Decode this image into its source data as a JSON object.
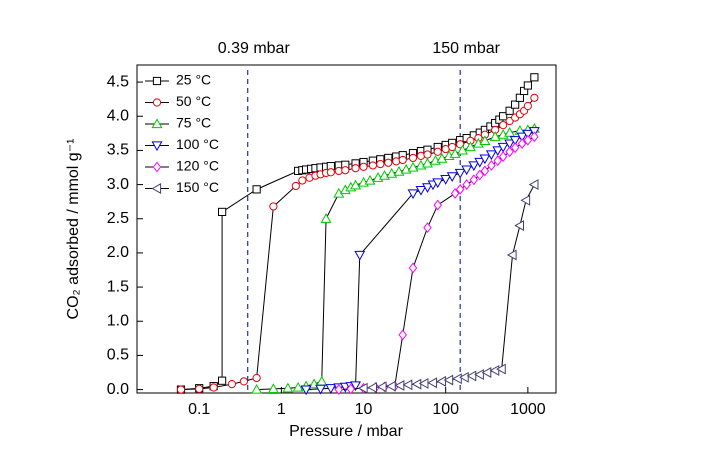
{
  "chart_data": {
    "type": "line",
    "xlabel": "Pressure / mbar",
    "ylabel": "CO₂ adsorbed / mmol g⁻¹",
    "xscale": "log",
    "xlim": [
      0.0175,
      2200
    ],
    "xticks": [
      0.1,
      1,
      10,
      100,
      1000
    ],
    "ylim": [
      -0.05,
      4.75
    ],
    "yticks": [
      {
        "value": 0,
        "label": "0.0"
      },
      0.5,
      {
        "value": 1,
        "label": "1.0"
      },
      1.5,
      {
        "value": 2,
        "label": "2.0"
      },
      2.5,
      {
        "value": 3,
        "label": "3.0"
      },
      3.5,
      {
        "value": 4,
        "label": "4.0"
      },
      4.5
    ],
    "legend": "upper left",
    "annotations": [
      {
        "x": 0.39,
        "label": "0.39 mbar"
      },
      {
        "x": 150,
        "label": "150 mbar"
      }
    ],
    "series": [
      {
        "name": "25 °C",
        "color": "#000000",
        "marker": "square",
        "x": [
          0.06,
          0.1,
          0.15,
          0.19,
          0.19,
          0.5,
          1.6,
          1.8,
          2,
          2.3,
          2.6,
          3,
          3.5,
          4,
          5,
          6,
          8,
          10,
          13,
          16,
          20,
          25,
          30,
          40,
          50,
          60,
          80,
          100,
          120,
          150,
          180,
          220,
          260,
          300,
          350,
          400,
          450,
          500,
          600,
          700,
          800,
          900,
          1000,
          1200
        ],
        "values": [
          0,
          0.02,
          0.05,
          0.13,
          2.6,
          2.93,
          3.2,
          3.21,
          3.22,
          3.23,
          3.24,
          3.25,
          3.26,
          3.27,
          3.28,
          3.29,
          3.31,
          3.33,
          3.35,
          3.37,
          3.39,
          3.41,
          3.43,
          3.46,
          3.49,
          3.51,
          3.55,
          3.58,
          3.61,
          3.65,
          3.68,
          3.72,
          3.76,
          3.8,
          3.85,
          3.9,
          3.95,
          4.0,
          4.08,
          4.17,
          4.27,
          4.37,
          4.45,
          4.57
        ]
      },
      {
        "name": "50 °C",
        "color": "#e8000b",
        "marker": "circle",
        "x": [
          0.06,
          0.1,
          0.15,
          0.25,
          0.35,
          0.5,
          0.8,
          1.5,
          1.8,
          2.2,
          2.6,
          3,
          3.5,
          4,
          5,
          6,
          8,
          10,
          13,
          16,
          20,
          25,
          30,
          40,
          50,
          60,
          80,
          100,
          120,
          150,
          200,
          250,
          300,
          400,
          500,
          600,
          700,
          800,
          900,
          1000,
          1200
        ],
        "values": [
          0,
          0.01,
          0.03,
          0.08,
          0.12,
          0.17,
          2.68,
          2.98,
          3.06,
          3.1,
          3.13,
          3.15,
          3.17,
          3.18,
          3.2,
          3.21,
          3.24,
          3.26,
          3.28,
          3.3,
          3.32,
          3.34,
          3.36,
          3.39,
          3.42,
          3.44,
          3.48,
          3.52,
          3.55,
          3.59,
          3.64,
          3.68,
          3.73,
          3.8,
          3.87,
          3.93,
          3.98,
          4.03,
          4.08,
          4.15,
          4.27
        ]
      },
      {
        "name": "75 °C",
        "color": "#00c800",
        "marker": "triangle-up",
        "x": [
          0.5,
          0.8,
          1.2,
          1.6,
          2,
          2.5,
          3.1,
          3.5,
          5,
          6,
          7,
          8,
          10,
          12,
          15,
          18,
          22,
          27,
          33,
          40,
          50,
          60,
          75,
          90,
          110,
          130,
          160,
          200,
          250,
          300,
          400,
          500,
          600,
          800,
          1000,
          1200
        ],
        "values": [
          0,
          0.01,
          0.02,
          0.03,
          0.05,
          0.08,
          0.12,
          2.5,
          2.87,
          2.92,
          2.96,
          2.99,
          3.03,
          3.06,
          3.1,
          3.13,
          3.16,
          3.19,
          3.22,
          3.25,
          3.28,
          3.31,
          3.35,
          3.38,
          3.42,
          3.45,
          3.5,
          3.55,
          3.6,
          3.64,
          3.7,
          3.73,
          3.76,
          3.79,
          3.8,
          3.82
        ]
      },
      {
        "name": "100 °C",
        "color": "#0000e0",
        "marker": "triangle-down",
        "x": [
          2,
          3,
          4,
          5,
          6,
          7,
          8,
          9,
          40,
          50,
          60,
          70,
          80,
          100,
          120,
          150,
          180,
          220,
          260,
          300,
          360,
          430,
          500,
          600,
          700,
          850,
          1000,
          1200
        ],
        "values": [
          0,
          0.01,
          0.02,
          0.03,
          0.04,
          0.05,
          0.06,
          1.97,
          2.87,
          2.92,
          2.96,
          3.0,
          3.03,
          3.08,
          3.12,
          3.17,
          3.22,
          3.28,
          3.33,
          3.38,
          3.44,
          3.5,
          3.55,
          3.6,
          3.65,
          3.7,
          3.74,
          3.78
        ]
      },
      {
        "name": "120 °C",
        "color": "#ff00ff",
        "marker": "diamond",
        "x": [
          5,
          7,
          10,
          14,
          18,
          24,
          30,
          40,
          60,
          80,
          130,
          150,
          180,
          220,
          260,
          300,
          360,
          430,
          500,
          600,
          700,
          850,
          1000,
          1200
        ],
        "values": [
          0,
          0.01,
          0.02,
          0.03,
          0.04,
          0.05,
          0.8,
          1.78,
          2.37,
          2.7,
          2.87,
          2.93,
          3.0,
          3.07,
          3.14,
          3.2,
          3.28,
          3.35,
          3.41,
          3.48,
          3.54,
          3.6,
          3.65,
          3.7
        ]
      },
      {
        "name": "150 °C",
        "color": "#404070",
        "marker": "triangle-left",
        "x": [
          10,
          13,
          17,
          22,
          28,
          35,
          45,
          55,
          70,
          90,
          110,
          140,
          170,
          210,
          260,
          320,
          400,
          480,
          650,
          800,
          950,
          1200
        ],
        "values": [
          0.02,
          0.03,
          0.04,
          0.05,
          0.06,
          0.07,
          0.08,
          0.09,
          0.1,
          0.12,
          0.14,
          0.16,
          0.18,
          0.2,
          0.22,
          0.25,
          0.28,
          0.3,
          1.97,
          2.4,
          2.77,
          3.0
        ]
      }
    ]
  }
}
